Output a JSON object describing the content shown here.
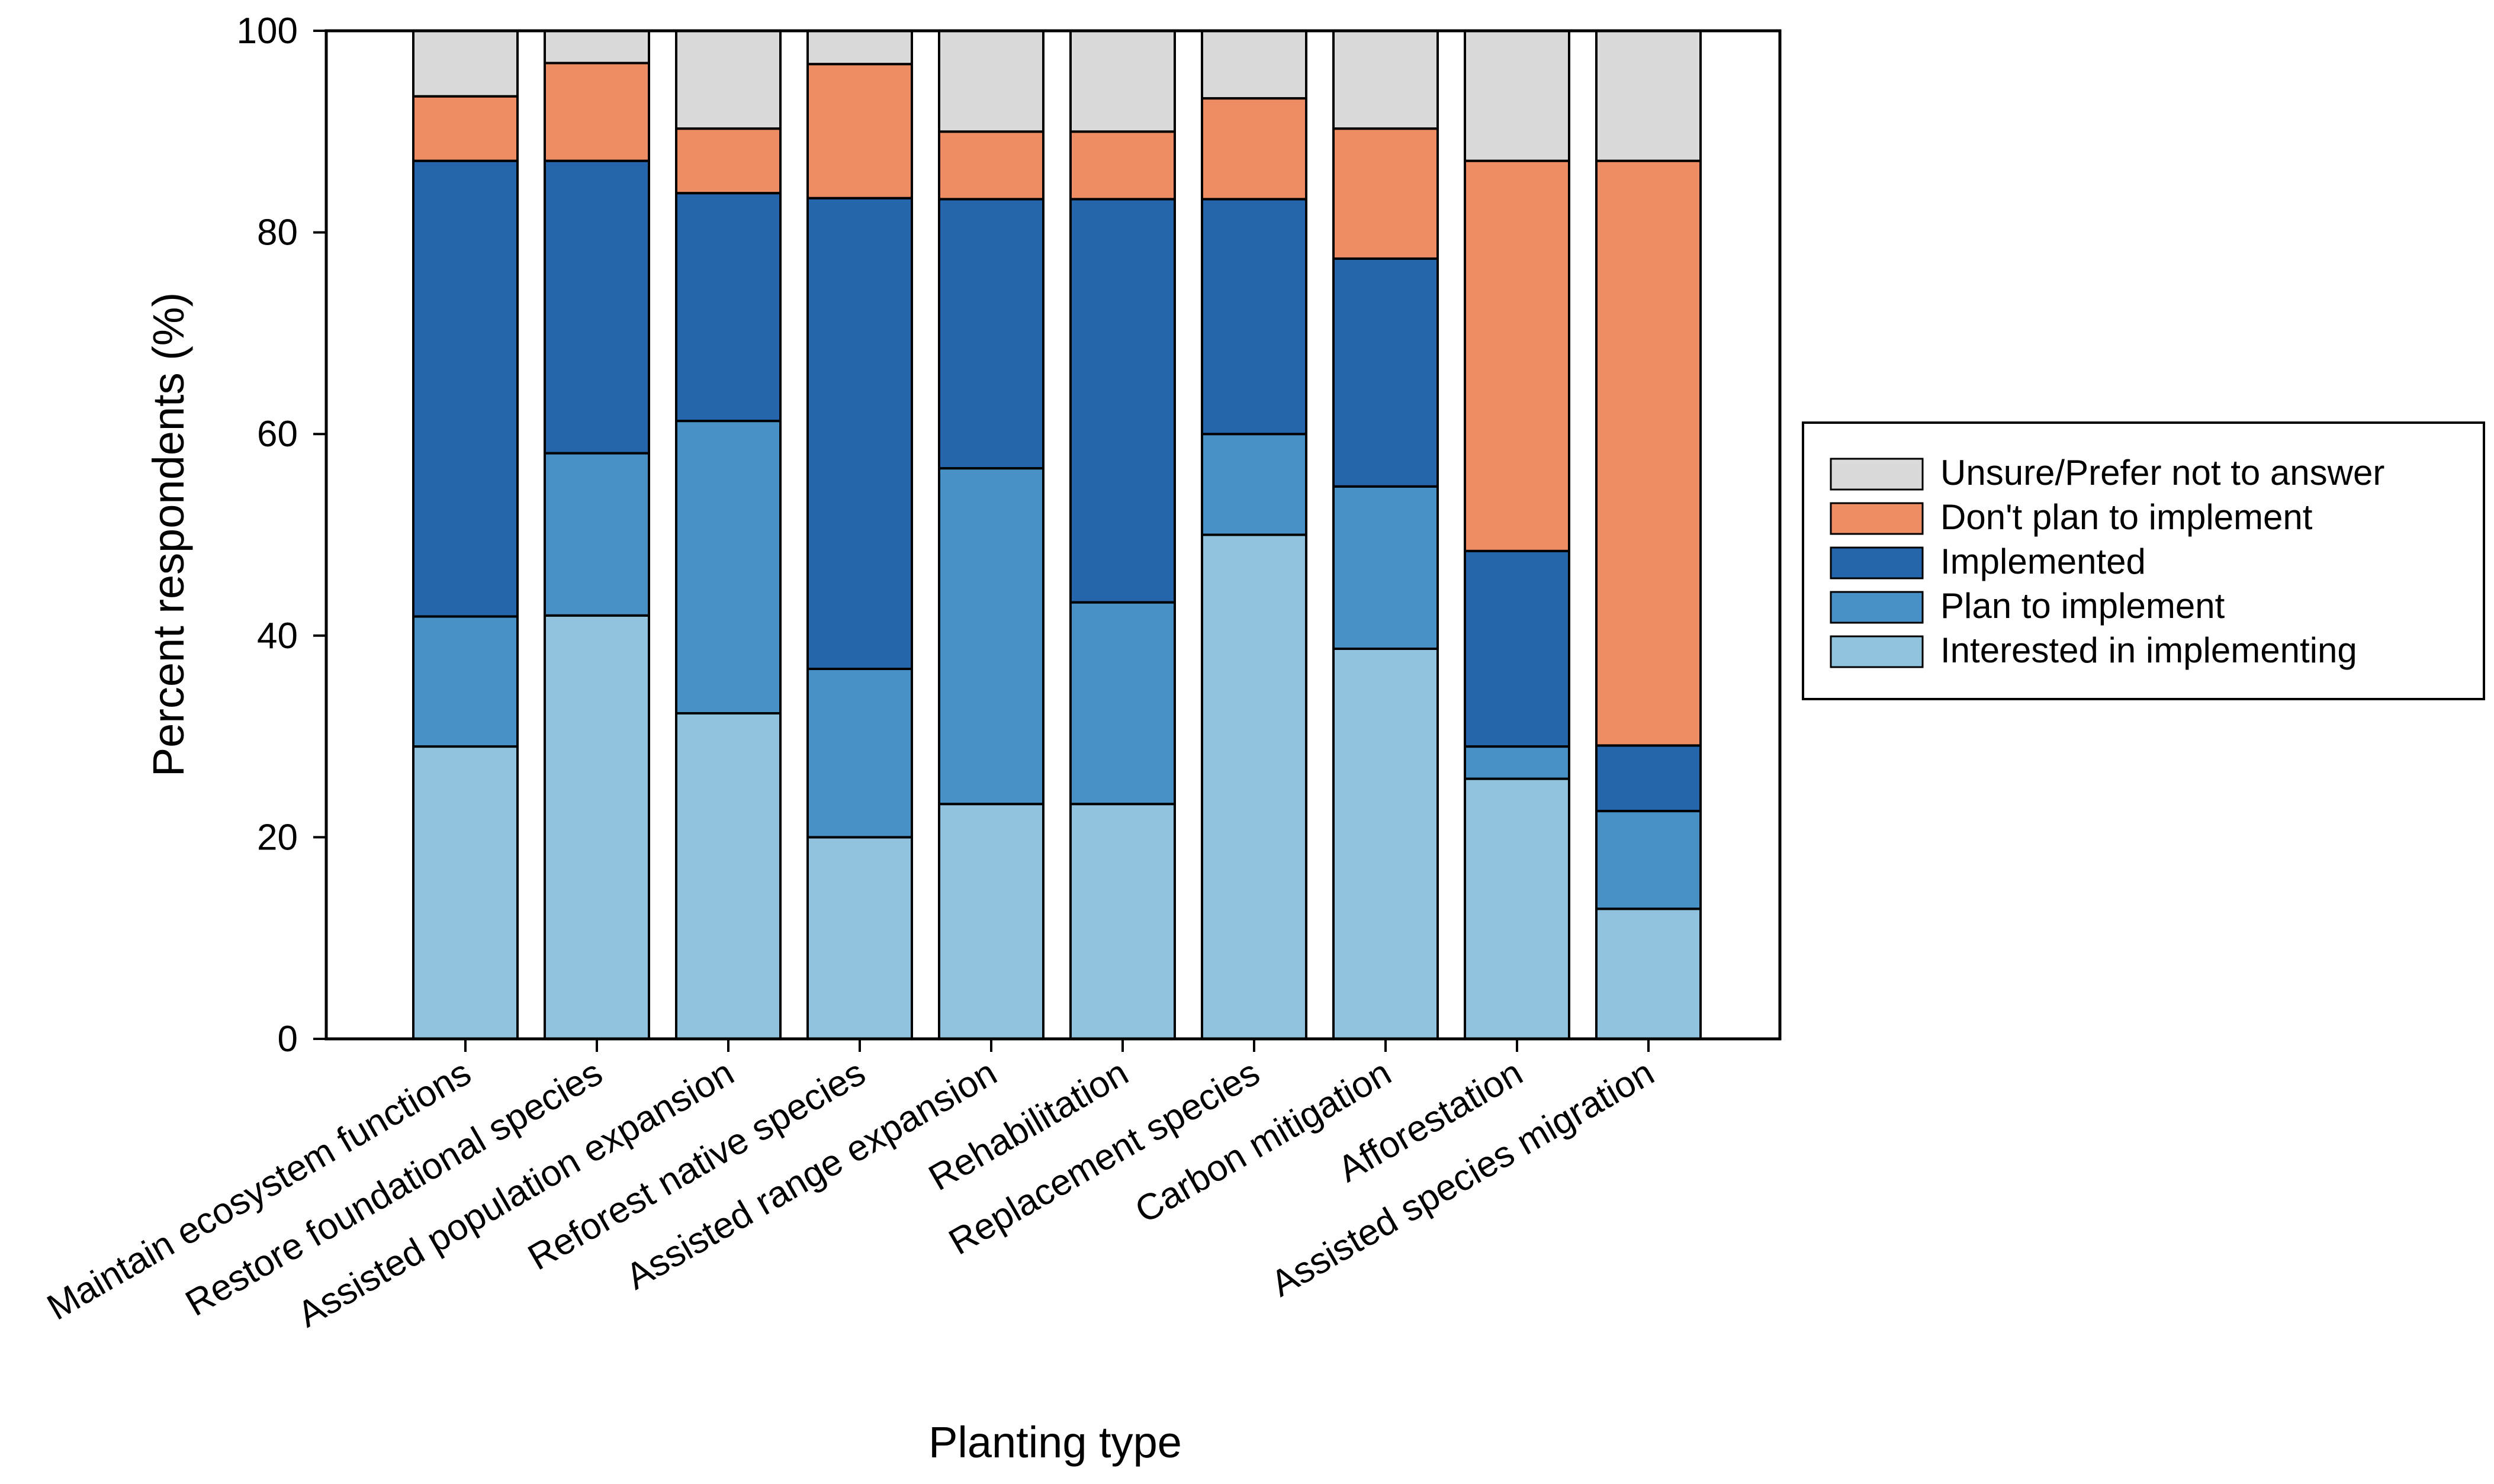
{
  "chart_data": {
    "type": "bar",
    "stacked": true,
    "xlabel": "Planting type",
    "ylabel": "Percent respondents (%)",
    "ylim": [
      0,
      100
    ],
    "yticks": [
      0,
      20,
      40,
      60,
      80,
      100
    ],
    "grid": false,
    "legend_position": "right",
    "categories": [
      "Maintain ecosystem functions",
      "Restore foundational species",
      "Assisted population expansion",
      "Reforest native species",
      "Assisted range expansion",
      "Rehabilitation",
      "Replacement species",
      "Carbon mitigation",
      "Afforestation",
      "Assisted species migration"
    ],
    "series": [
      {
        "name": "Interested in implementing",
        "color": "#92c3de",
        "values": [
          29,
          42,
          32.3,
          20,
          23.3,
          23.3,
          50,
          38.7,
          25.8,
          12.9
        ]
      },
      {
        "name": "Plan to implement",
        "color": "#4791c6",
        "values": [
          12.9,
          16.1,
          29,
          16.7,
          33.3,
          20,
          10,
          16.1,
          3.2,
          9.7
        ]
      },
      {
        "name": "Implemented",
        "color": "#2565ac",
        "values": [
          45.2,
          29,
          22.6,
          46.7,
          26.7,
          40,
          23.3,
          22.6,
          19.4,
          6.5
        ]
      },
      {
        "name": "Don't plan to implement",
        "color": "#ee8d63",
        "values": [
          6.4,
          9.7,
          6.4,
          13.3,
          6.7,
          6.7,
          10,
          12.9,
          38.7,
          58
        ]
      },
      {
        "name": "Unsure/Prefer not to answer",
        "color": "#dadada",
        "values": [
          6.5,
          3.2,
          9.7,
          3.3,
          10,
          10,
          6.7,
          9.7,
          12.9,
          12.9
        ]
      }
    ],
    "legend_order": [
      "Unsure/Prefer not to answer",
      "Don't plan to implement",
      "Implemented",
      "Plan to implement",
      "Interested in implementing"
    ]
  }
}
